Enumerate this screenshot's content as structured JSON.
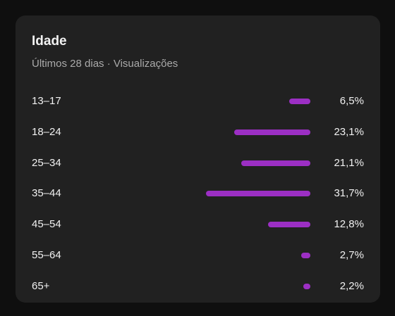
{
  "card": {
    "title": "Idade",
    "subtitle": "Últimos 28 dias · Visualizações"
  },
  "accent_color": "#9c2fc4",
  "age_groups": [
    {
      "label": "13–17",
      "value": 6.5,
      "display": "6,5%"
    },
    {
      "label": "18–24",
      "value": 23.1,
      "display": "23,1%"
    },
    {
      "label": "25–34",
      "value": 21.1,
      "display": "21,1%"
    },
    {
      "label": "35–44",
      "value": 31.7,
      "display": "31,7%"
    },
    {
      "label": "45–54",
      "value": 12.8,
      "display": "12,8%"
    },
    {
      "label": "55–64",
      "value": 2.7,
      "display": "2,7%"
    },
    {
      "label": "65+",
      "value": 2.2,
      "display": "2,2%"
    }
  ]
}
